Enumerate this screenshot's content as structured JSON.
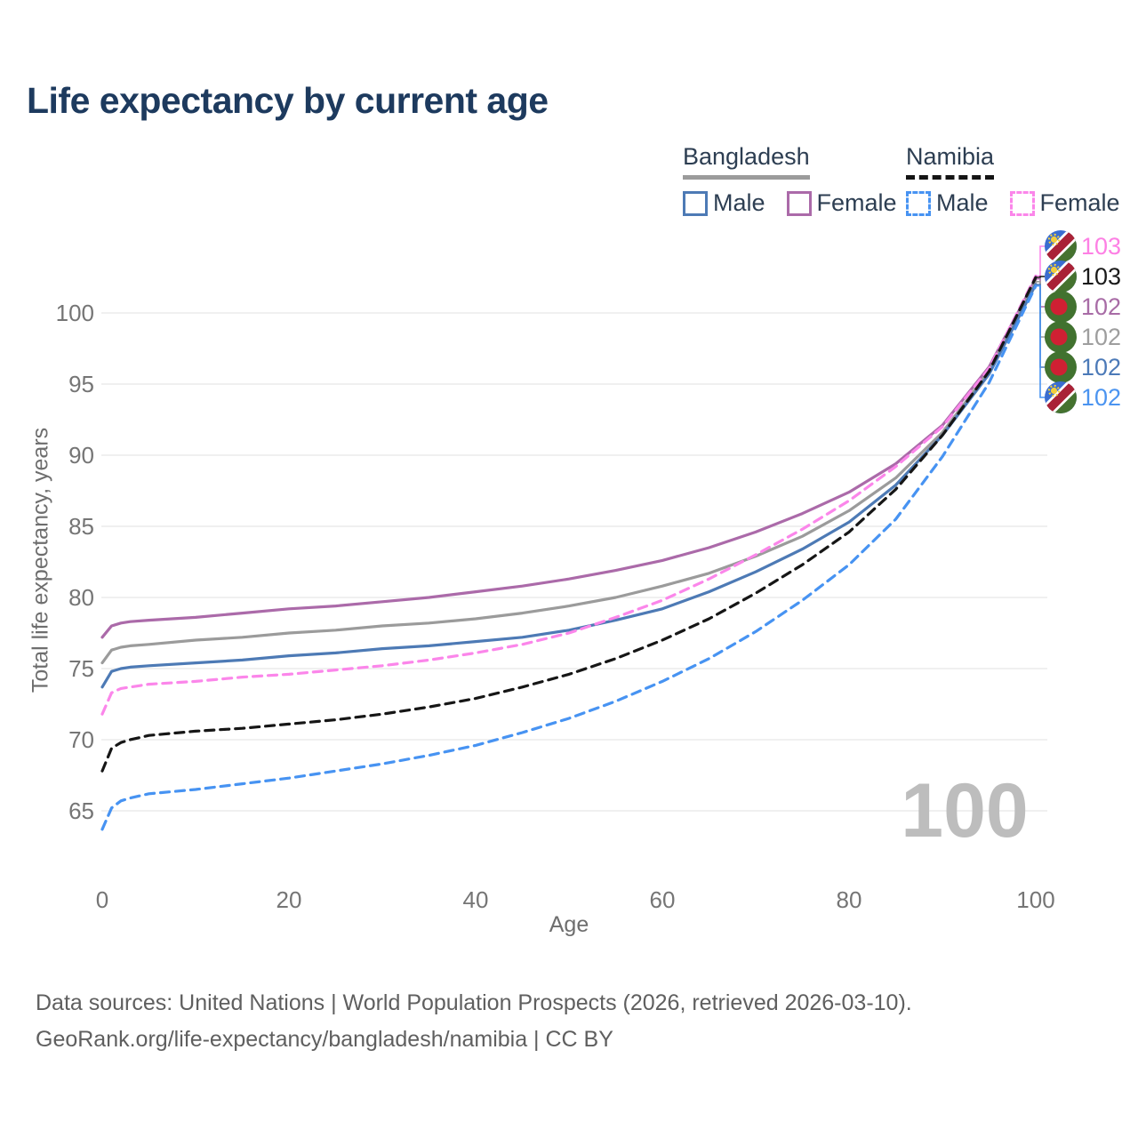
{
  "title": "Life expectancy by current age",
  "legend": {
    "groups": [
      {
        "country": "Bangladesh",
        "line_style": "solid",
        "items": [
          {
            "label": "Male",
            "series": "bangladesh-male"
          },
          {
            "label": "Female",
            "series": "bangladesh-female"
          }
        ]
      },
      {
        "country": "Namibia",
        "line_style": "dashed",
        "items": [
          {
            "label": "Male",
            "series": "namibia-male"
          },
          {
            "label": "Female",
            "series": "namibia-female"
          }
        ]
      }
    ]
  },
  "watermark": "100",
  "footer": {
    "line1": "Data sources: United Nations | World Population Prospects (2026, retrieved 2026-03-10).",
    "line2": "GeoRank.org/life-expectancy/bangladesh/namibia | CC BY"
  },
  "chart_data": {
    "type": "line",
    "title": "Life expectancy by current age",
    "xlabel": "Age",
    "ylabel": "Total life expectancy, years",
    "x_ticks": [
      0,
      20,
      40,
      60,
      80,
      100
    ],
    "y_ticks": [
      65,
      70,
      75,
      80,
      85,
      90,
      95,
      100
    ],
    "xlim": [
      0,
      100
    ],
    "ylim": [
      63,
      103.5
    ],
    "grid": "horizontal",
    "grid_color": "#ececec",
    "tick_label_color": "#757575",
    "watermark_color": "#bdbdbd",
    "ages": [
      0,
      1,
      2,
      3,
      5,
      10,
      15,
      20,
      25,
      30,
      35,
      40,
      45,
      50,
      55,
      60,
      65,
      70,
      75,
      80,
      85,
      90,
      95,
      100
    ],
    "series": [
      {
        "id": "bangladesh-female",
        "name": "Bangladesh Female",
        "country": "Bangladesh",
        "sex": "Female",
        "color": "#ab6aa9",
        "dashed": false,
        "values": [
          77.2,
          78.0,
          78.2,
          78.3,
          78.4,
          78.6,
          78.9,
          79.2,
          79.4,
          79.7,
          80.0,
          80.4,
          80.8,
          81.3,
          81.9,
          82.6,
          83.5,
          84.6,
          85.9,
          87.4,
          89.4,
          92.1,
          96.2,
          102.4
        ]
      },
      {
        "id": "bangladesh-both",
        "name": "Bangladesh Both sexes",
        "country": "Bangladesh",
        "sex": "Both",
        "color": "#9b9b9b",
        "dashed": false,
        "values": [
          75.4,
          76.3,
          76.5,
          76.6,
          76.7,
          77.0,
          77.2,
          77.5,
          77.7,
          78.0,
          78.2,
          78.5,
          78.9,
          79.4,
          80.0,
          80.8,
          81.7,
          82.9,
          84.3,
          86.1,
          88.4,
          91.6,
          95.9,
          102.2
        ]
      },
      {
        "id": "bangladesh-male",
        "name": "Bangladesh Male",
        "country": "Bangladesh",
        "sex": "Male",
        "color": "#4d7ab5",
        "dashed": false,
        "values": [
          73.7,
          74.8,
          75.0,
          75.1,
          75.2,
          75.4,
          75.6,
          75.9,
          76.1,
          76.4,
          76.6,
          76.9,
          77.2,
          77.7,
          78.4,
          79.2,
          80.4,
          81.8,
          83.4,
          85.3,
          87.9,
          91.4,
          95.7,
          102.0
        ]
      },
      {
        "id": "namibia-female",
        "name": "Namibia Female",
        "country": "Namibia",
        "sex": "Female",
        "color": "#fb86ea",
        "dashed": true,
        "values": [
          71.8,
          73.3,
          73.6,
          73.7,
          73.9,
          74.1,
          74.4,
          74.6,
          74.9,
          75.2,
          75.6,
          76.1,
          76.7,
          77.5,
          78.6,
          79.8,
          81.3,
          83.0,
          84.8,
          86.8,
          89.2,
          92.0,
          96.1,
          102.6
        ]
      },
      {
        "id": "namibia-both",
        "name": "Namibia Both sexes",
        "country": "Namibia",
        "sex": "Both",
        "color": "#161616",
        "dashed": true,
        "values": [
          67.8,
          69.4,
          69.8,
          70.0,
          70.3,
          70.6,
          70.8,
          71.1,
          71.4,
          71.8,
          72.3,
          72.9,
          73.7,
          74.6,
          75.7,
          77.0,
          78.5,
          80.3,
          82.3,
          84.6,
          87.6,
          91.4,
          95.9,
          102.5
        ]
      },
      {
        "id": "namibia-male",
        "name": "Namibia Male",
        "country": "Namibia",
        "sex": "Male",
        "color": "#4793f2",
        "dashed": true,
        "values": [
          63.7,
          65.2,
          65.7,
          65.9,
          66.2,
          66.5,
          66.9,
          67.3,
          67.8,
          68.3,
          68.9,
          69.6,
          70.5,
          71.5,
          72.7,
          74.1,
          75.7,
          77.6,
          79.8,
          82.3,
          85.5,
          89.9,
          95.1,
          101.9
        ]
      }
    ],
    "end_labels": [
      {
        "series": "namibia-female",
        "value": "103",
        "color": "#fd80e4",
        "flag": "namibia"
      },
      {
        "series": "namibia-both",
        "value": "103",
        "color": "#1a1a1a",
        "flag": "namibia"
      },
      {
        "series": "bangladesh-female",
        "value": "102",
        "color": "#a86ca6",
        "flag": "bangladesh"
      },
      {
        "series": "bangladesh-both",
        "value": "102",
        "color": "#9e9e9e",
        "flag": "bangladesh"
      },
      {
        "series": "bangladesh-male",
        "value": "102",
        "color": "#4c7ab8",
        "flag": "bangladesh"
      },
      {
        "series": "namibia-male",
        "value": "102",
        "color": "#4b94f0",
        "flag": "namibia"
      }
    ],
    "flag_colors": {
      "bangladesh_green": "#41722f",
      "bangladesh_red": "#cf2033",
      "namibia_blue": "#3a6dd0",
      "namibia_green": "#45722f",
      "namibia_red": "#a92237",
      "namibia_white": "#ffffff",
      "namibia_sun": "#f2ce3d"
    }
  }
}
